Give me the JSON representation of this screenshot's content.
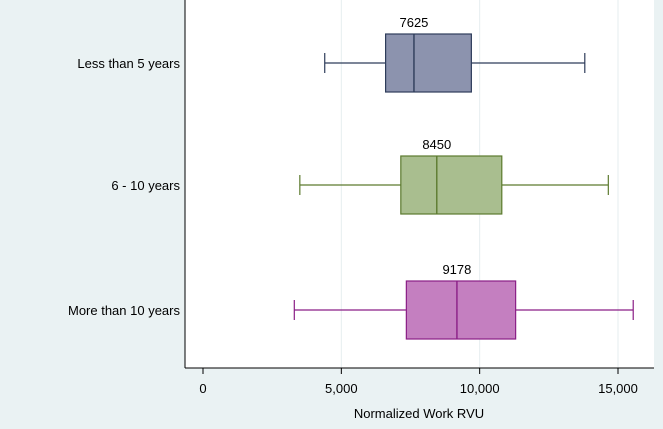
{
  "chart_data": {
    "type": "box",
    "orientation": "horizontal",
    "xlabel": "Normalized Work RVU",
    "xlim": [
      -1000,
      16000
    ],
    "xticks": [
      0,
      5000,
      10000,
      15000
    ],
    "xtick_labels": [
      "0",
      "5,000",
      "10,000",
      "15,000"
    ],
    "grid": "vertical",
    "categories": [
      "Less than 5 years",
      "6 - 10 years",
      "More than 10 years"
    ],
    "series": [
      {
        "category": "Less than 5 years",
        "whisker_low": 4400,
        "q1": 6600,
        "median": 7625,
        "q3": 9700,
        "whisker_high": 13800,
        "median_label": "7625",
        "fill": "#8C93AE",
        "stroke": "#2E3C5A"
      },
      {
        "category": "6 - 10 years",
        "whisker_low": 3500,
        "q1": 7150,
        "median": 8450,
        "q3": 10800,
        "whisker_high": 14650,
        "median_label": "8450",
        "fill": "#A9BE8F",
        "stroke": "#5C7A2E"
      },
      {
        "category": "More than 10 years",
        "whisker_low": 3300,
        "q1": 7350,
        "median": 9178,
        "q3": 11300,
        "whisker_high": 15550,
        "median_label": "9178",
        "fill": "#C47FC0",
        "stroke": "#8A1E86"
      }
    ],
    "colors": {
      "outer_background": "#EAF2F3",
      "plot_background": "#FFFFFF",
      "grid": "#E6EEEF",
      "axis": "#000000"
    }
  }
}
